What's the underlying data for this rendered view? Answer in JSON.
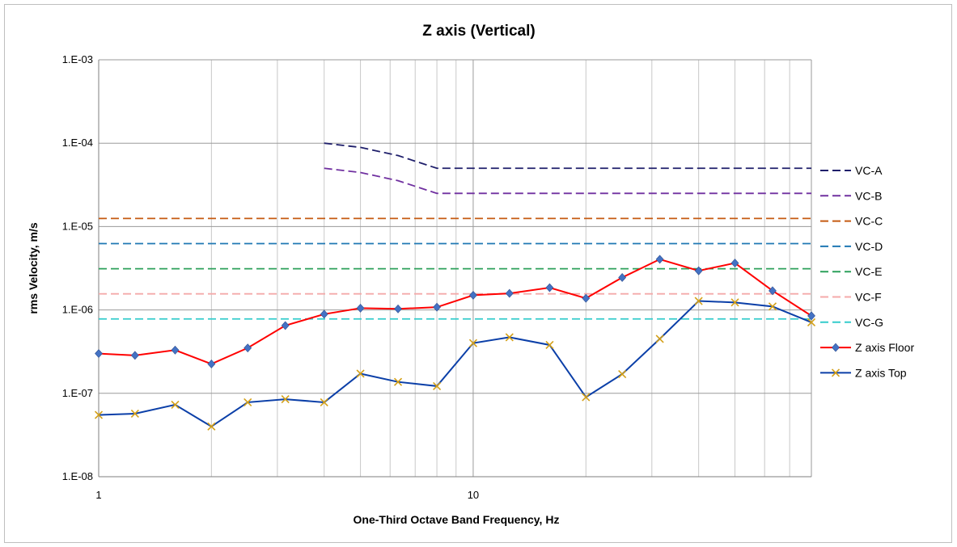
{
  "chart_data": {
    "type": "line",
    "title": "Z axis (Vertical)",
    "xlabel": "One-Third Octave Band Frequency, Hz",
    "ylabel": "rms Velocity, m/s",
    "x_scale": "log",
    "y_scale": "log",
    "xlim": [
      1,
      80
    ],
    "ylim": [
      1e-08,
      0.001
    ],
    "x_tick_labels": [
      {
        "value": 1,
        "label": "1"
      },
      {
        "value": 10,
        "label": "10"
      }
    ],
    "y_tick_labels": [
      {
        "value": 0.001,
        "label": "1.E-03"
      },
      {
        "value": 0.0001,
        "label": "1.E-04"
      },
      {
        "value": 1e-05,
        "label": "1.E-05"
      },
      {
        "value": 1e-06,
        "label": "1.E-06"
      },
      {
        "value": 1e-07,
        "label": "1.E-07"
      },
      {
        "value": 1e-08,
        "label": "1.E-08"
      }
    ],
    "grid": true,
    "legend_position": "right",
    "series": [
      {
        "name": "VC-A",
        "color": "#1f1f6b",
        "style": "dashed",
        "x": [
          4,
          5,
          6.3,
          8,
          10,
          12.5,
          16,
          20,
          25,
          31.5,
          40,
          50,
          63,
          80
        ],
        "y": [
          0.0001,
          8.9e-05,
          7.1e-05,
          5e-05,
          5e-05,
          5e-05,
          5e-05,
          5e-05,
          5e-05,
          5e-05,
          5e-05,
          5e-05,
          5e-05,
          5e-05
        ]
      },
      {
        "name": "VC-B",
        "color": "#7030a0",
        "style": "dashed",
        "x": [
          4,
          5,
          6.3,
          8,
          10,
          12.5,
          16,
          20,
          25,
          31.5,
          40,
          50,
          63,
          80
        ],
        "y": [
          5e-05,
          4.45e-05,
          3.55e-05,
          2.5e-05,
          2.5e-05,
          2.5e-05,
          2.5e-05,
          2.5e-05,
          2.5e-05,
          2.5e-05,
          2.5e-05,
          2.5e-05,
          2.5e-05,
          2.5e-05
        ]
      },
      {
        "name": "VC-C",
        "color": "#c55a11",
        "style": "dashed",
        "x": [
          1,
          80
        ],
        "y": [
          1.25e-05,
          1.25e-05
        ]
      },
      {
        "name": "VC-D",
        "color": "#1f78b4",
        "style": "dashed",
        "x": [
          1,
          80
        ],
        "y": [
          6.25e-06,
          6.25e-06
        ]
      },
      {
        "name": "VC-E",
        "color": "#2ca05a",
        "style": "dashed",
        "x": [
          1,
          80
        ],
        "y": [
          3.12e-06,
          3.12e-06
        ]
      },
      {
        "name": "VC-F",
        "color": "#f4aaaa",
        "style": "dashed",
        "x": [
          1,
          80
        ],
        "y": [
          1.56e-06,
          1.56e-06
        ]
      },
      {
        "name": "VC-G",
        "color": "#33cccc",
        "style": "dashed",
        "x": [
          1,
          80
        ],
        "y": [
          7.8e-07,
          7.8e-07
        ]
      },
      {
        "name": "Z axis Floor",
        "color": "#ff0000",
        "style": "solid",
        "marker": "diamond",
        "marker_color": "#4472c4",
        "x": [
          1,
          1.25,
          1.6,
          2,
          2.5,
          3.15,
          4,
          5,
          6.3,
          8,
          10,
          12.5,
          16,
          20,
          25,
          31.5,
          40,
          50,
          63,
          80
        ],
        "y": [
          3e-07,
          2.85e-07,
          3.3e-07,
          2.25e-07,
          3.5e-07,
          6.5e-07,
          8.9e-07,
          1.05e-06,
          1.03e-06,
          1.08e-06,
          1.5e-06,
          1.58e-06,
          1.85e-06,
          1.38e-06,
          2.45e-06,
          4.05e-06,
          2.95e-06,
          3.65e-06,
          1.7e-06,
          8.5e-07
        ]
      },
      {
        "name": "Z axis Top",
        "color": "#0b3fa8",
        "style": "solid",
        "marker": "x",
        "marker_color": "#d4a017",
        "x": [
          1,
          1.25,
          1.6,
          2,
          2.5,
          3.15,
          4,
          5,
          6.3,
          8,
          10,
          12.5,
          16,
          20,
          25,
          31.5,
          40,
          50,
          63,
          80
        ],
        "y": [
          5.5e-08,
          5.7e-08,
          7.3e-08,
          4e-08,
          7.8e-08,
          8.5e-08,
          7.8e-08,
          1.72e-07,
          1.37e-07,
          1.22e-07,
          4e-07,
          4.7e-07,
          3.8e-07,
          9e-08,
          1.7e-07,
          4.5e-07,
          1.28e-06,
          1.23e-06,
          1.1e-06,
          7.1e-07
        ]
      }
    ]
  }
}
